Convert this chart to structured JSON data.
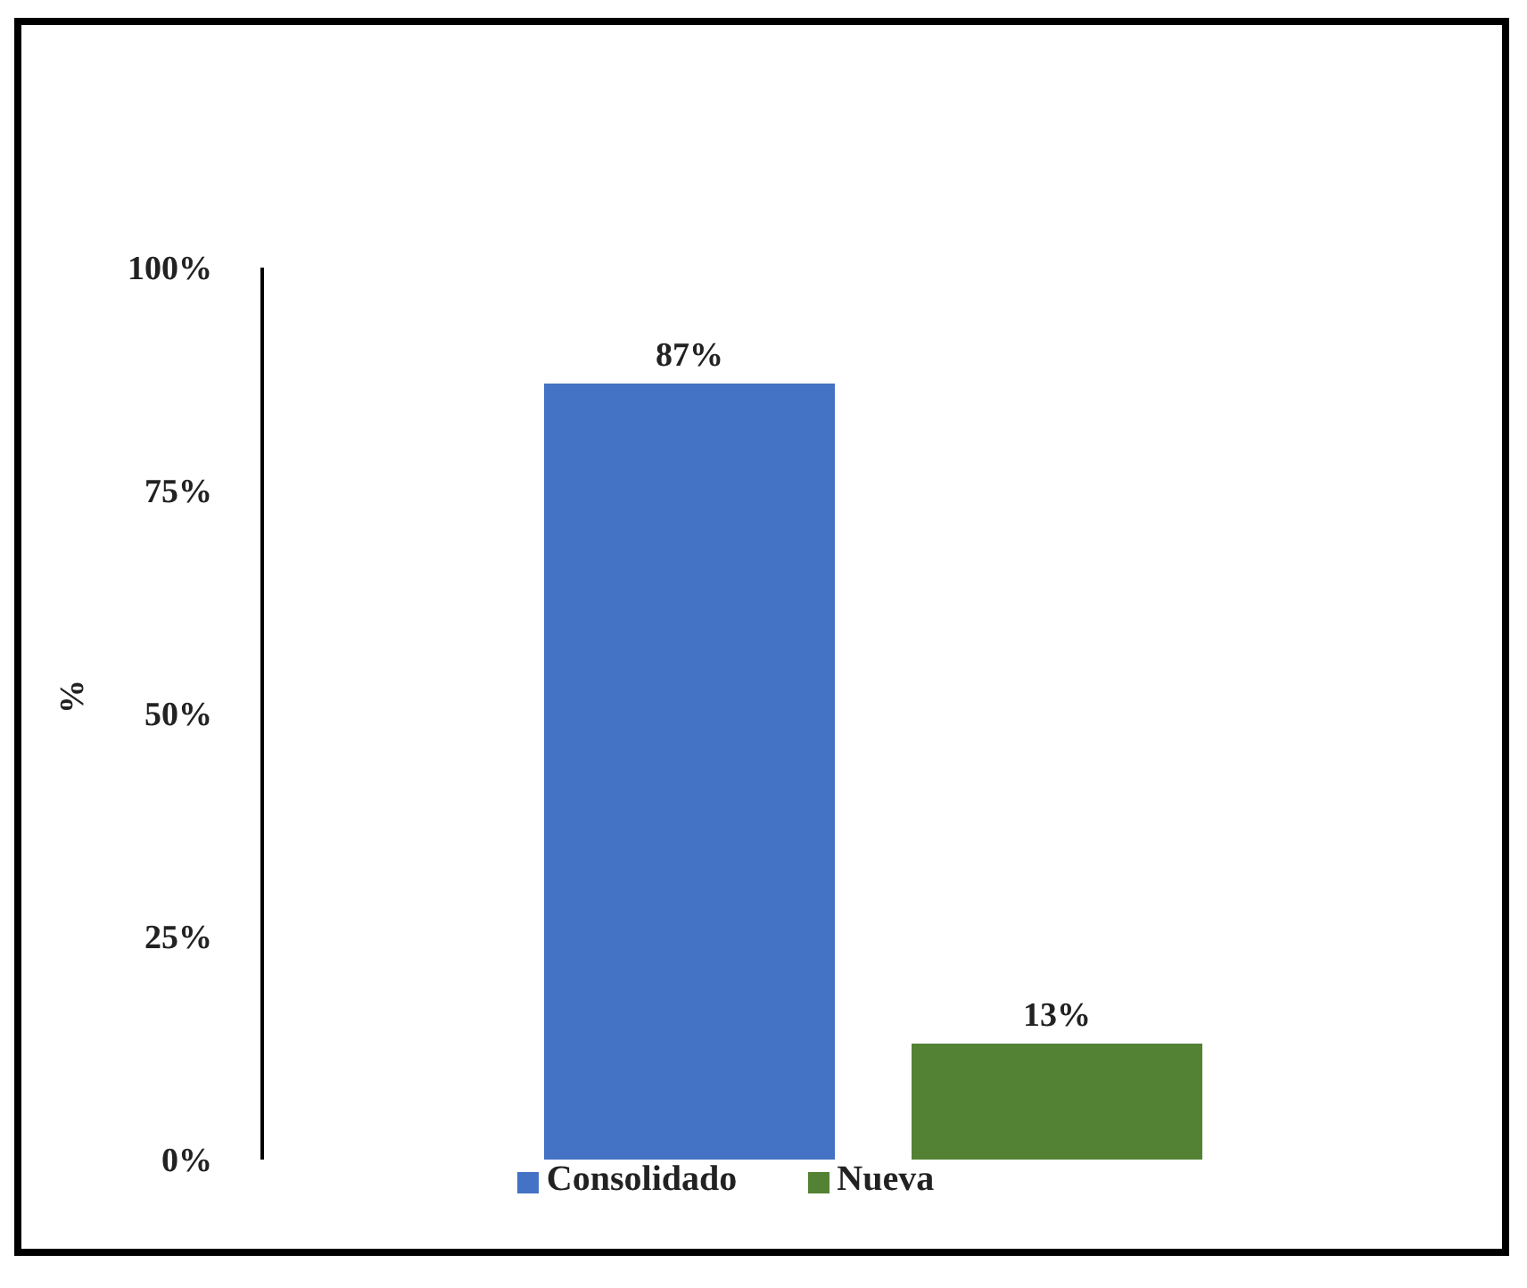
{
  "chart_data": {
    "type": "bar",
    "categories": [
      null
    ],
    "ylabel": "%",
    "series": [
      {
        "name": "Consolidado",
        "color": "#4472c4",
        "values": [
          87
        ],
        "value_labels": [
          "87%"
        ]
      },
      {
        "name": "Nueva",
        "color": "#548235",
        "values": [
          13
        ],
        "value_labels": [
          "13%"
        ]
      }
    ],
    "ylim": [
      0,
      100
    ],
    "yticks": [
      {
        "value": 0,
        "label": "0%"
      },
      {
        "value": 25,
        "label": "25%"
      },
      {
        "value": 50,
        "label": "50%"
      },
      {
        "value": 75,
        "label": "75%"
      },
      {
        "value": 100,
        "label": "100%"
      }
    ],
    "grid": false,
    "legend": "bottom",
    "tick_labels": "y"
  }
}
